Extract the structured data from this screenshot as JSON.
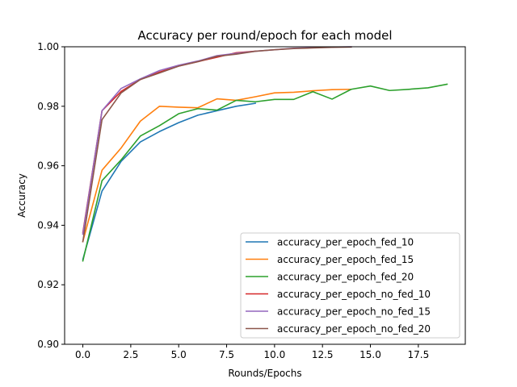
{
  "chart_data": {
    "type": "line",
    "title": "Accuracy per round/epoch for each model",
    "xlabel": "Rounds/Epochs",
    "ylabel": "Accuracy",
    "xlim": [
      -0.95,
      19.95
    ],
    "ylim": [
      0.9,
      1.0
    ],
    "xticks": [
      0.0,
      2.5,
      5.0,
      7.5,
      10.0,
      12.5,
      15.0,
      17.5
    ],
    "xtick_labels": [
      "0.0",
      "2.5",
      "5.0",
      "7.5",
      "10.0",
      "12.5",
      "15.0",
      "17.5"
    ],
    "yticks": [
      0.9,
      0.92,
      0.94,
      0.96,
      0.98,
      1.0
    ],
    "ytick_labels": [
      "0.90",
      "0.92",
      "0.94",
      "0.96",
      "0.98",
      "1.00"
    ],
    "grid": false,
    "legend_position": "lower-right",
    "series": [
      {
        "name": "accuracy_per_epoch_fed_10",
        "color": "#1f77b4",
        "x": [
          0,
          1,
          2,
          3,
          4,
          5,
          6,
          7,
          8,
          9
        ],
        "values": [
          0.9285,
          0.9515,
          0.9615,
          0.968,
          0.9715,
          0.9745,
          0.977,
          0.9785,
          0.98,
          0.981
        ]
      },
      {
        "name": "accuracy_per_epoch_fed_15",
        "color": "#ff7f0e",
        "x": [
          0,
          1,
          2,
          3,
          4,
          5,
          6,
          7,
          8,
          9,
          10,
          11,
          12,
          13,
          14
        ],
        "values": [
          0.9345,
          0.9585,
          0.966,
          0.975,
          0.98,
          0.9797,
          0.9795,
          0.9825,
          0.982,
          0.9832,
          0.9845,
          0.9847,
          0.9852,
          0.9856,
          0.9857
        ]
      },
      {
        "name": "accuracy_per_epoch_fed_20",
        "color": "#2ca02c",
        "x": [
          0,
          1,
          2,
          3,
          4,
          5,
          6,
          7,
          8,
          9,
          10,
          11,
          12,
          13,
          14,
          15,
          16,
          17,
          18,
          19
        ],
        "values": [
          0.928,
          0.955,
          0.962,
          0.97,
          0.9735,
          0.9775,
          0.9792,
          0.9787,
          0.982,
          0.9815,
          0.9823,
          0.9823,
          0.9849,
          0.9824,
          0.9857,
          0.9868,
          0.9853,
          0.9857,
          0.9862,
          0.9874
        ]
      },
      {
        "name": "accuracy_per_epoch_no_fed_10",
        "color": "#d62728",
        "x": [
          0,
          1,
          2,
          3,
          4,
          5,
          6,
          7,
          8,
          9
        ],
        "values": [
          0.9375,
          0.9785,
          0.985,
          0.989,
          0.9915,
          0.9935,
          0.995,
          0.9965,
          0.998,
          0.9985
        ]
      },
      {
        "name": "accuracy_per_epoch_no_fed_15",
        "color": "#9467bd",
        "x": [
          0,
          1,
          2,
          3,
          4,
          5,
          6,
          7,
          8,
          9,
          10,
          11,
          12,
          13,
          14
        ],
        "values": [
          0.937,
          0.9785,
          0.986,
          0.9892,
          0.992,
          0.9938,
          0.9952,
          0.997,
          0.9978,
          0.9985,
          0.999,
          0.9995,
          0.9997,
          0.9999,
          1.0
        ]
      },
      {
        "name": "accuracy_per_epoch_no_fed_20",
        "color": "#8c564b",
        "x": [
          0,
          1,
          2,
          3,
          4,
          5,
          6,
          7,
          8,
          9,
          10,
          11,
          12,
          13,
          14
        ],
        "values": [
          0.9345,
          0.9755,
          0.9845,
          0.989,
          0.9912,
          0.9935,
          0.995,
          0.9968,
          0.9975,
          0.9985,
          0.999,
          0.9994,
          0.9996,
          0.9998,
          0.9999
        ]
      }
    ]
  }
}
